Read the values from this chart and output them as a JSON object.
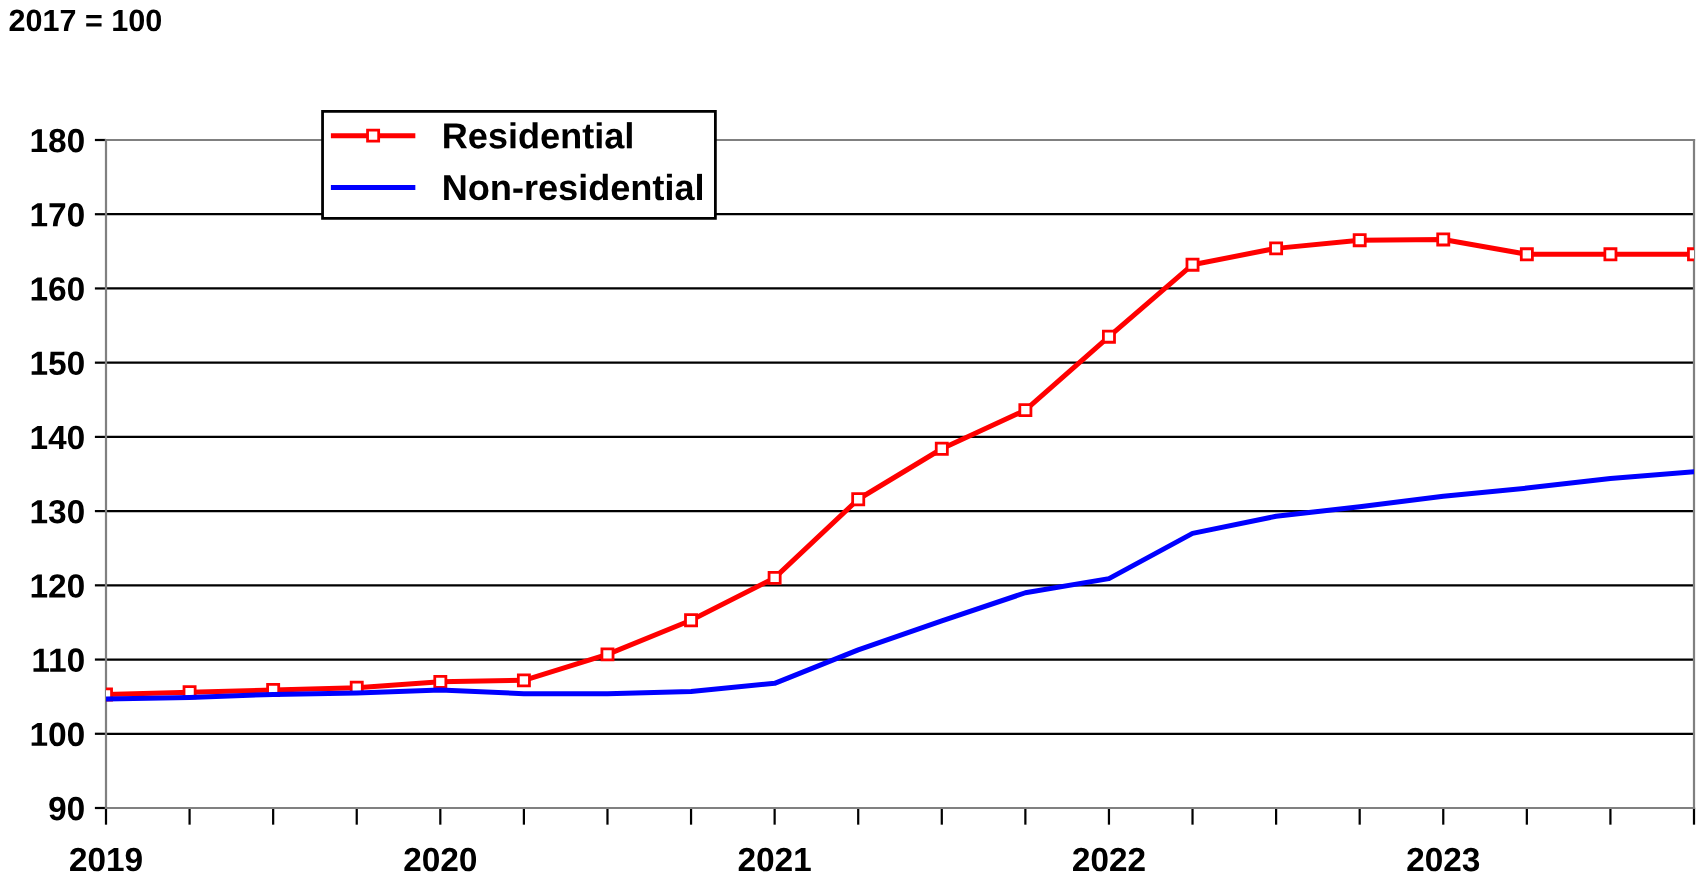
{
  "chart_data": {
    "type": "line",
    "x": [
      2019,
      2019.25,
      2019.5,
      2019.75,
      2020,
      2020.25,
      2020.5,
      2020.75,
      2021,
      2021.25,
      2021.5,
      2021.75,
      2022,
      2022.25,
      2022.5,
      2022.75,
      2023,
      2023.25,
      2023.5,
      2023.75
    ],
    "series": [
      {
        "name": "Residential",
        "color": "#ff0000",
        "marker": "square",
        "values": [
          105.3,
          105.6,
          105.9,
          106.2,
          107.0,
          107.2,
          110.7,
          115.3,
          121.0,
          131.6,
          138.4,
          143.6,
          153.5,
          163.2,
          165.4,
          166.5,
          166.6,
          164.6,
          164.6,
          164.6
        ]
      },
      {
        "name": "Non-residential",
        "color": "#0000ff",
        "marker": "none",
        "values": [
          104.7,
          104.9,
          105.3,
          105.5,
          105.9,
          105.4,
          105.4,
          105.7,
          106.8,
          111.3,
          115.2,
          119.0,
          120.9,
          127.0,
          129.3,
          130.6,
          132.0,
          133.1,
          134.4,
          135.3
        ]
      }
    ],
    "xlim": [
      2019,
      2023.75
    ],
    "xticks": [
      2019,
      {
        "value": 2019.25,
        "label": null
      },
      {
        "value": 2019.5,
        "label": null
      },
      {
        "value": 2019.75,
        "label": null
      },
      2020,
      {
        "value": 2020.25,
        "label": null
      },
      {
        "value": 2020.5,
        "label": null
      },
      {
        "value": 2020.75,
        "label": null
      },
      2021,
      {
        "value": 2021.25,
        "label": null
      },
      {
        "value": 2021.5,
        "label": null
      },
      {
        "value": 2021.75,
        "label": null
      },
      2022,
      {
        "value": 2022.25,
        "label": null
      },
      {
        "value": 2022.5,
        "label": null
      },
      {
        "value": 2022.75,
        "label": null
      },
      2023,
      {
        "value": 2023.25,
        "label": null
      },
      {
        "value": 2023.5,
        "label": null
      },
      {
        "value": 2023.75,
        "label": null
      }
    ],
    "ylim": [
      90,
      180
    ],
    "yticks": [
      90,
      100,
      110,
      120,
      130,
      140,
      150,
      160,
      170,
      180
    ],
    "grid": "y",
    "legend": "top left",
    "line_style": "solid",
    "annotations": [
      "2017 = 100"
    ]
  }
}
